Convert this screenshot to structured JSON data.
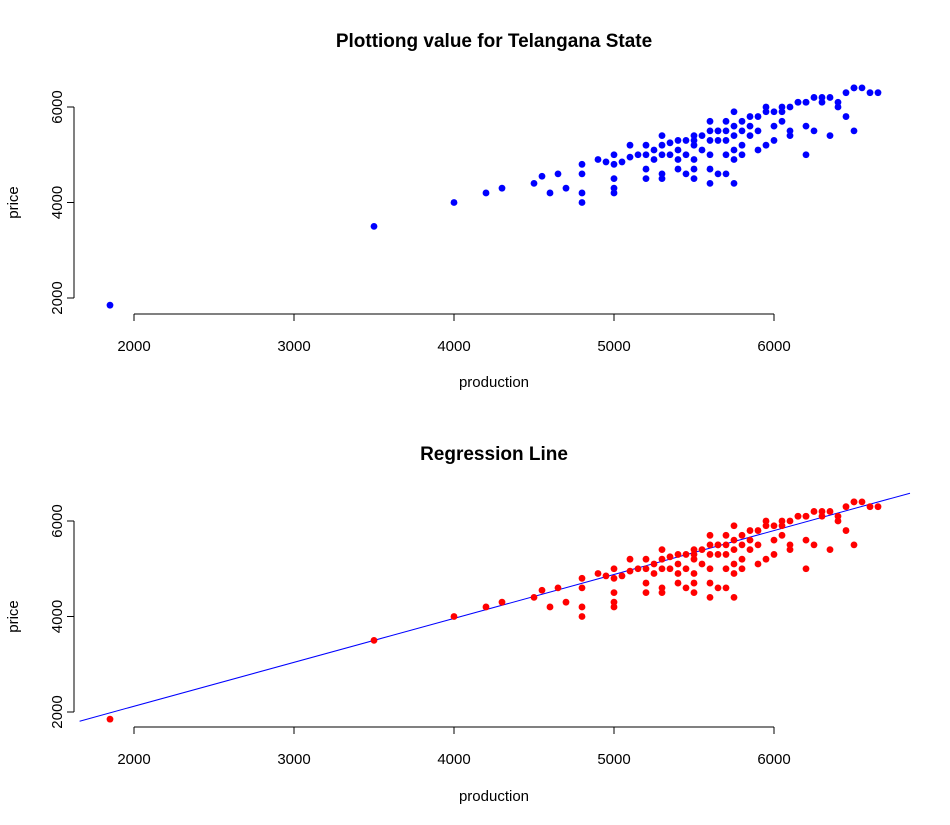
{
  "chart_data": [
    {
      "type": "scatter",
      "title": "Plottiong value for Telangana State",
      "xlabel": "production",
      "ylabel": "price",
      "xlim": [
        1850,
        6700
      ],
      "ylim": [
        1850,
        6450
      ],
      "xticks": [
        2000,
        3000,
        4000,
        5000,
        6000
      ],
      "yticks": [
        2000,
        4000,
        6000
      ],
      "point_color": "#0000ff",
      "series": [
        {
          "x": [
            1850,
            3500,
            4000,
            4200,
            4300,
            4500,
            4550,
            4600,
            4650,
            4700,
            4800,
            4800,
            4800,
            4900,
            4950,
            5000,
            5000,
            5000,
            5050,
            5100,
            5150,
            5200,
            5200,
            5200,
            5250,
            5250,
            5300,
            5300,
            5300,
            5350,
            5350,
            5400,
            5400,
            5400,
            5450,
            5450,
            5500,
            5500,
            5500,
            5500,
            5550,
            5550,
            5600,
            5600,
            5600,
            5600,
            5650,
            5650,
            5650,
            5700,
            5700,
            5700,
            5700,
            5750,
            5750,
            5750,
            5750,
            5800,
            5800,
            5800,
            5850,
            5850,
            5900,
            5900,
            5950,
            5950,
            6000,
            6000,
            6050,
            6050,
            6100,
            6100,
            6150,
            6200,
            6200,
            6250,
            6300,
            6350,
            6400,
            6450,
            6500,
            6550,
            6600,
            6650,
            4800,
            5000,
            5000,
            5200,
            5300,
            5400,
            5450,
            5500,
            5600,
            5700,
            5750,
            5800,
            5900,
            6000,
            6100,
            6200,
            6250,
            6350,
            6450,
            6500,
            5300,
            5500,
            5650,
            5850,
            6050,
            6200,
            6400,
            5100,
            5600,
            5750,
            5950,
            6150,
            6300,
            6500
          ],
          "y": [
            1850,
            3500,
            4000,
            4200,
            4300,
            4400,
            4550,
            4200,
            4600,
            4300,
            4000,
            4200,
            4800,
            4900,
            4850,
            4200,
            4500,
            5000,
            4850,
            4950,
            5000,
            5000,
            4700,
            5200,
            5100,
            4900,
            5200,
            5000,
            4500,
            5250,
            5000,
            5300,
            5100,
            4900,
            5300,
            5000,
            5400,
            5200,
            4900,
            4500,
            5400,
            5100,
            5500,
            5300,
            5000,
            4700,
            5500,
            5300,
            4600,
            5700,
            5500,
            5300,
            5000,
            5600,
            5400,
            5100,
            4400,
            5700,
            5500,
            5200,
            5800,
            5400,
            5800,
            5500,
            5900,
            5200,
            5900,
            5600,
            6000,
            5700,
            6000,
            5400,
            6100,
            6100,
            5000,
            6200,
            6100,
            6200,
            6100,
            6300,
            6400,
            6400,
            6300,
            6300,
            4600,
            4800,
            4300,
            4500,
            4600,
            4700,
            4600,
            4700,
            4400,
            4600,
            4900,
            5000,
            5100,
            5300,
            5500,
            5600,
            5500,
            5400,
            5800,
            5500,
            5400,
            5300,
            5500,
            5600,
            5900,
            6100,
            6000,
            5200,
            5700,
            5900,
            6000,
            6100,
            6200,
            6400
          ]
        }
      ]
    },
    {
      "type": "scatter",
      "title": "Regression Line",
      "xlabel": "production",
      "ylabel": "price",
      "xlim": [
        1850,
        6700
      ],
      "ylim": [
        1850,
        6450
      ],
      "xticks": [
        2000,
        3000,
        4000,
        5000,
        6000
      ],
      "yticks": [
        2000,
        4000,
        6000
      ],
      "point_color": "#ff0000",
      "line_color": "#0000ff",
      "regression_line": {
        "intercept": 280,
        "slope": 0.92
      },
      "series": [
        {
          "x": [
            1850,
            3500,
            4000,
            4200,
            4300,
            4500,
            4550,
            4600,
            4650,
            4700,
            4800,
            4800,
            4800,
            4900,
            4950,
            5000,
            5000,
            5000,
            5050,
            5100,
            5150,
            5200,
            5200,
            5200,
            5250,
            5250,
            5300,
            5300,
            5300,
            5350,
            5350,
            5400,
            5400,
            5400,
            5450,
            5450,
            5500,
            5500,
            5500,
            5500,
            5550,
            5550,
            5600,
            5600,
            5600,
            5600,
            5650,
            5650,
            5650,
            5700,
            5700,
            5700,
            5700,
            5750,
            5750,
            5750,
            5750,
            5800,
            5800,
            5800,
            5850,
            5850,
            5900,
            5900,
            5950,
            5950,
            6000,
            6000,
            6050,
            6050,
            6100,
            6100,
            6150,
            6200,
            6200,
            6250,
            6300,
            6350,
            6400,
            6450,
            6500,
            6550,
            6600,
            6650,
            4800,
            5000,
            5000,
            5200,
            5300,
            5400,
            5450,
            5500,
            5600,
            5700,
            5750,
            5800,
            5900,
            6000,
            6100,
            6200,
            6250,
            6350,
            6450,
            6500,
            5300,
            5500,
            5650,
            5850,
            6050,
            6200,
            6400,
            5100,
            5600,
            5750,
            5950,
            6150,
            6300,
            6500
          ],
          "y": [
            1850,
            3500,
            4000,
            4200,
            4300,
            4400,
            4550,
            4200,
            4600,
            4300,
            4000,
            4200,
            4800,
            4900,
            4850,
            4200,
            4500,
            5000,
            4850,
            4950,
            5000,
            5000,
            4700,
            5200,
            5100,
            4900,
            5200,
            5000,
            4500,
            5250,
            5000,
            5300,
            5100,
            4900,
            5300,
            5000,
            5400,
            5200,
            4900,
            4500,
            5400,
            5100,
            5500,
            5300,
            5000,
            4700,
            5500,
            5300,
            4600,
            5700,
            5500,
            5300,
            5000,
            5600,
            5400,
            5100,
            4400,
            5700,
            5500,
            5200,
            5800,
            5400,
            5800,
            5500,
            5900,
            5200,
            5900,
            5600,
            6000,
            5700,
            6000,
            5400,
            6100,
            6100,
            5000,
            6200,
            6100,
            6200,
            6100,
            6300,
            6400,
            6400,
            6300,
            6300,
            4600,
            4800,
            4300,
            4500,
            4600,
            4700,
            4600,
            4700,
            4400,
            4600,
            4900,
            5000,
            5100,
            5300,
            5500,
            5600,
            5500,
            5400,
            5800,
            5500,
            5400,
            5300,
            5500,
            5600,
            5900,
            6100,
            6000,
            5200,
            5700,
            5900,
            6000,
            6100,
            6200,
            6400
          ]
        }
      ]
    }
  ]
}
